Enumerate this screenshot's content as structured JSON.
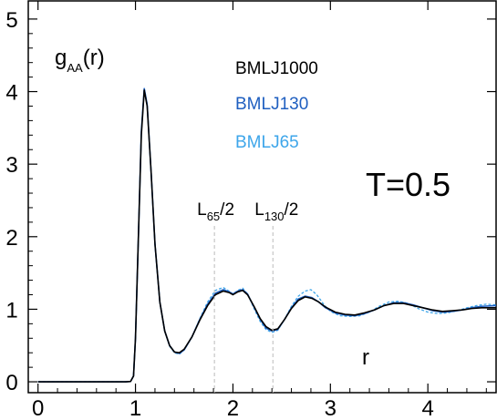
{
  "chart_data": {
    "type": "line",
    "ylabel_main": "g",
    "ylabel_sub": "AA",
    "ylabel_tail": "(r)",
    "xlabel": "r",
    "temperature_label": "T=0.5",
    "xlim": [
      -0.1,
      4.7
    ],
    "ylim": [
      -0.15,
      5.25
    ],
    "xticks": [
      0,
      1,
      2,
      3,
      4
    ],
    "yticks": [
      0,
      1,
      2,
      3,
      4,
      5
    ],
    "annotations": [
      {
        "main": "L",
        "sub": "65",
        "tail": "/2",
        "x": 1.81
      },
      {
        "main": "L",
        "sub": "130",
        "tail": "/2",
        "x": 2.41
      }
    ],
    "series": [
      {
        "name": "BMLJ1000",
        "color": "#000000",
        "dash": "solid",
        "points": [
          [
            0,
            0
          ],
          [
            0.9,
            0
          ],
          [
            0.95,
            0.005
          ],
          [
            0.98,
            0.08
          ],
          [
            1.0,
            0.6
          ],
          [
            1.03,
            2.0
          ],
          [
            1.06,
            3.4
          ],
          [
            1.09,
            4.02
          ],
          [
            1.12,
            3.8
          ],
          [
            1.16,
            2.9
          ],
          [
            1.2,
            1.9
          ],
          [
            1.25,
            1.1
          ],
          [
            1.3,
            0.7
          ],
          [
            1.35,
            0.5
          ],
          [
            1.4,
            0.41
          ],
          [
            1.45,
            0.4
          ],
          [
            1.5,
            0.45
          ],
          [
            1.58,
            0.62
          ],
          [
            1.66,
            0.85
          ],
          [
            1.74,
            1.05
          ],
          [
            1.82,
            1.2
          ],
          [
            1.9,
            1.25
          ],
          [
            1.96,
            1.23
          ],
          [
            2.0,
            1.2
          ],
          [
            2.05,
            1.24
          ],
          [
            2.1,
            1.26
          ],
          [
            2.15,
            1.2
          ],
          [
            2.22,
            1.03
          ],
          [
            2.28,
            0.87
          ],
          [
            2.34,
            0.76
          ],
          [
            2.4,
            0.71
          ],
          [
            2.46,
            0.73
          ],
          [
            2.53,
            0.86
          ],
          [
            2.6,
            1.01
          ],
          [
            2.67,
            1.12
          ],
          [
            2.74,
            1.17
          ],
          [
            2.81,
            1.15
          ],
          [
            2.88,
            1.1
          ],
          [
            2.95,
            1.03
          ],
          [
            3.05,
            0.96
          ],
          [
            3.15,
            0.93
          ],
          [
            3.25,
            0.92
          ],
          [
            3.35,
            0.95
          ],
          [
            3.45,
            0.99
          ],
          [
            3.55,
            1.05
          ],
          [
            3.65,
            1.08
          ],
          [
            3.75,
            1.08
          ],
          [
            3.85,
            1.05
          ],
          [
            3.95,
            1.02
          ],
          [
            4.05,
            0.99
          ],
          [
            4.15,
            0.97
          ],
          [
            4.25,
            0.98
          ],
          [
            4.35,
            0.99
          ],
          [
            4.45,
            1.01
          ],
          [
            4.55,
            1.02
          ],
          [
            4.7,
            1.02
          ]
        ]
      },
      {
        "name": "BMLJ130",
        "color": "#1f5fc0",
        "dash": "solid",
        "points": [
          [
            0,
            0
          ],
          [
            0.9,
            0
          ],
          [
            0.95,
            0.005
          ],
          [
            0.98,
            0.08
          ],
          [
            1.0,
            0.6
          ],
          [
            1.03,
            2.0
          ],
          [
            1.06,
            3.45
          ],
          [
            1.09,
            4.04
          ],
          [
            1.12,
            3.82
          ],
          [
            1.16,
            2.9
          ],
          [
            1.2,
            1.9
          ],
          [
            1.25,
            1.1
          ],
          [
            1.3,
            0.7
          ],
          [
            1.35,
            0.5
          ],
          [
            1.4,
            0.41
          ],
          [
            1.45,
            0.39
          ],
          [
            1.5,
            0.44
          ],
          [
            1.58,
            0.62
          ],
          [
            1.66,
            0.86
          ],
          [
            1.74,
            1.07
          ],
          [
            1.82,
            1.22
          ],
          [
            1.9,
            1.27
          ],
          [
            1.96,
            1.24
          ],
          [
            2.0,
            1.21
          ],
          [
            2.05,
            1.25
          ],
          [
            2.1,
            1.27
          ],
          [
            2.15,
            1.21
          ],
          [
            2.22,
            1.02
          ],
          [
            2.28,
            0.86
          ],
          [
            2.34,
            0.74
          ],
          [
            2.4,
            0.7
          ],
          [
            2.46,
            0.72
          ],
          [
            2.53,
            0.86
          ],
          [
            2.6,
            1.02
          ],
          [
            2.67,
            1.14
          ],
          [
            2.74,
            1.18
          ],
          [
            2.81,
            1.16
          ],
          [
            2.88,
            1.1
          ],
          [
            2.95,
            1.02
          ],
          [
            3.05,
            0.95
          ],
          [
            3.15,
            0.92
          ],
          [
            3.25,
            0.91
          ],
          [
            3.35,
            0.94
          ],
          [
            3.45,
            0.99
          ],
          [
            3.55,
            1.05
          ],
          [
            3.65,
            1.09
          ],
          [
            3.75,
            1.09
          ],
          [
            3.85,
            1.06
          ],
          [
            3.95,
            1.02
          ],
          [
            4.05,
            0.98
          ],
          [
            4.15,
            0.96
          ],
          [
            4.25,
            0.97
          ],
          [
            4.35,
            0.99
          ],
          [
            4.45,
            1.02
          ],
          [
            4.55,
            1.04
          ],
          [
            4.7,
            1.05
          ]
        ]
      },
      {
        "name": "BMLJ65",
        "color": "#3ea6ea",
        "dash": "dashed",
        "points": [
          [
            0,
            0
          ],
          [
            0.9,
            0
          ],
          [
            0.95,
            0.005
          ],
          [
            0.98,
            0.08
          ],
          [
            1.0,
            0.6
          ],
          [
            1.03,
            2.0
          ],
          [
            1.06,
            3.45
          ],
          [
            1.09,
            4.05
          ],
          [
            1.12,
            3.83
          ],
          [
            1.16,
            2.9
          ],
          [
            1.2,
            1.9
          ],
          [
            1.25,
            1.1
          ],
          [
            1.3,
            0.7
          ],
          [
            1.35,
            0.49
          ],
          [
            1.4,
            0.4
          ],
          [
            1.45,
            0.38
          ],
          [
            1.5,
            0.44
          ],
          [
            1.58,
            0.62
          ],
          [
            1.66,
            0.87
          ],
          [
            1.74,
            1.1
          ],
          [
            1.82,
            1.26
          ],
          [
            1.9,
            1.3
          ],
          [
            1.96,
            1.25
          ],
          [
            2.0,
            1.21
          ],
          [
            2.05,
            1.26
          ],
          [
            2.1,
            1.29
          ],
          [
            2.15,
            1.21
          ],
          [
            2.22,
            1.0
          ],
          [
            2.28,
            0.83
          ],
          [
            2.34,
            0.72
          ],
          [
            2.4,
            0.68
          ],
          [
            2.46,
            0.71
          ],
          [
            2.53,
            0.86
          ],
          [
            2.6,
            1.04
          ],
          [
            2.67,
            1.18
          ],
          [
            2.74,
            1.25
          ],
          [
            2.8,
            1.27
          ],
          [
            2.86,
            1.2
          ],
          [
            2.93,
            1.07
          ],
          [
            3.0,
            0.97
          ],
          [
            3.1,
            0.91
          ],
          [
            3.2,
            0.9
          ],
          [
            3.3,
            0.91
          ],
          [
            3.4,
            0.96
          ],
          [
            3.5,
            1.04
          ],
          [
            3.6,
            1.1
          ],
          [
            3.7,
            1.11
          ],
          [
            3.8,
            1.08
          ],
          [
            3.9,
            1.01
          ],
          [
            4.0,
            0.96
          ],
          [
            4.1,
            0.94
          ],
          [
            4.2,
            0.95
          ],
          [
            4.3,
            0.98
          ],
          [
            4.4,
            1.02
          ],
          [
            4.5,
            1.05
          ],
          [
            4.6,
            1.07
          ],
          [
            4.7,
            1.06
          ]
        ]
      }
    ]
  }
}
